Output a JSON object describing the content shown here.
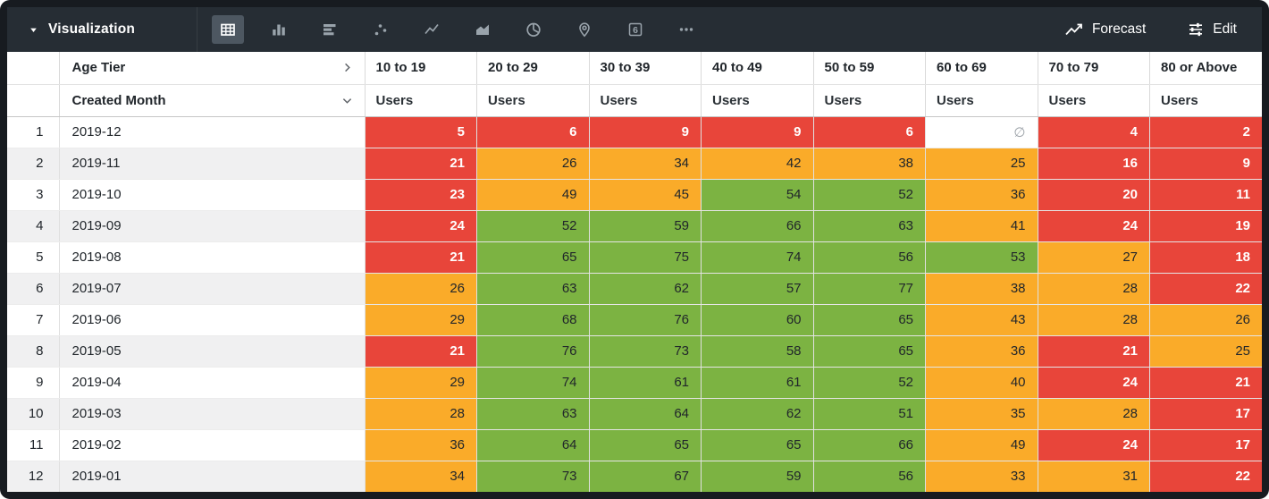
{
  "toolbar": {
    "title": "Visualization",
    "viz_types": [
      {
        "name": "table-icon",
        "selected": true
      },
      {
        "name": "column-chart-icon",
        "selected": false
      },
      {
        "name": "bar-chart-icon",
        "selected": false
      },
      {
        "name": "scatter-plot-icon",
        "selected": false
      },
      {
        "name": "line-chart-icon",
        "selected": false
      },
      {
        "name": "area-chart-icon",
        "selected": false
      },
      {
        "name": "pie-chart-icon",
        "selected": false
      },
      {
        "name": "map-icon",
        "selected": false
      },
      {
        "name": "single-value-icon",
        "selected": false,
        "glyph": "6"
      },
      {
        "name": "more-viz-types-icon",
        "selected": false
      }
    ],
    "forecast_label": "Forecast",
    "edit_label": "Edit"
  },
  "table": {
    "pivot_field": "Age Tier",
    "dimension_field": "Created Month",
    "measure_label": "Users",
    "pivot_columns": [
      "10 to 19",
      "20 to 29",
      "30 to 39",
      "40 to 49",
      "50 to 59",
      "60 to 69",
      "70 to 79",
      "80 or Above"
    ],
    "rows": [
      {
        "n": 1,
        "month": "2019-12",
        "cells": [
          {
            "v": 5,
            "c": "red"
          },
          {
            "v": 6,
            "c": "red"
          },
          {
            "v": 9,
            "c": "red"
          },
          {
            "v": 9,
            "c": "red"
          },
          {
            "v": 6,
            "c": "red"
          },
          {
            "v": "∅",
            "c": "null"
          },
          {
            "v": 4,
            "c": "red"
          },
          {
            "v": 2,
            "c": "red"
          }
        ]
      },
      {
        "n": 2,
        "month": "2019-11",
        "cells": [
          {
            "v": 21,
            "c": "red"
          },
          {
            "v": 26,
            "c": "orange"
          },
          {
            "v": 34,
            "c": "orange"
          },
          {
            "v": 42,
            "c": "orange"
          },
          {
            "v": 38,
            "c": "orange"
          },
          {
            "v": 25,
            "c": "orange"
          },
          {
            "v": 16,
            "c": "red"
          },
          {
            "v": 9,
            "c": "red"
          }
        ]
      },
      {
        "n": 3,
        "month": "2019-10",
        "cells": [
          {
            "v": 23,
            "c": "red"
          },
          {
            "v": 49,
            "c": "orange"
          },
          {
            "v": 45,
            "c": "orange"
          },
          {
            "v": 54,
            "c": "green"
          },
          {
            "v": 52,
            "c": "green"
          },
          {
            "v": 36,
            "c": "orange"
          },
          {
            "v": 20,
            "c": "red"
          },
          {
            "v": 11,
            "c": "red"
          }
        ]
      },
      {
        "n": 4,
        "month": "2019-09",
        "cells": [
          {
            "v": 24,
            "c": "red"
          },
          {
            "v": 52,
            "c": "green"
          },
          {
            "v": 59,
            "c": "green"
          },
          {
            "v": 66,
            "c": "green"
          },
          {
            "v": 63,
            "c": "green"
          },
          {
            "v": 41,
            "c": "orange"
          },
          {
            "v": 24,
            "c": "red"
          },
          {
            "v": 19,
            "c": "red"
          }
        ]
      },
      {
        "n": 5,
        "month": "2019-08",
        "cells": [
          {
            "v": 21,
            "c": "red"
          },
          {
            "v": 65,
            "c": "green"
          },
          {
            "v": 75,
            "c": "green"
          },
          {
            "v": 74,
            "c": "green"
          },
          {
            "v": 56,
            "c": "green"
          },
          {
            "v": 53,
            "c": "green"
          },
          {
            "v": 27,
            "c": "orange"
          },
          {
            "v": 18,
            "c": "red"
          }
        ]
      },
      {
        "n": 6,
        "month": "2019-07",
        "cells": [
          {
            "v": 26,
            "c": "orange"
          },
          {
            "v": 63,
            "c": "green"
          },
          {
            "v": 62,
            "c": "green"
          },
          {
            "v": 57,
            "c": "green"
          },
          {
            "v": 77,
            "c": "green"
          },
          {
            "v": 38,
            "c": "orange"
          },
          {
            "v": 28,
            "c": "orange"
          },
          {
            "v": 22,
            "c": "red"
          }
        ]
      },
      {
        "n": 7,
        "month": "2019-06",
        "cells": [
          {
            "v": 29,
            "c": "orange"
          },
          {
            "v": 68,
            "c": "green"
          },
          {
            "v": 76,
            "c": "green"
          },
          {
            "v": 60,
            "c": "green"
          },
          {
            "v": 65,
            "c": "green"
          },
          {
            "v": 43,
            "c": "orange"
          },
          {
            "v": 28,
            "c": "orange"
          },
          {
            "v": 26,
            "c": "orange"
          }
        ]
      },
      {
        "n": 8,
        "month": "2019-05",
        "cells": [
          {
            "v": 21,
            "c": "red"
          },
          {
            "v": 76,
            "c": "green"
          },
          {
            "v": 73,
            "c": "green"
          },
          {
            "v": 58,
            "c": "green"
          },
          {
            "v": 65,
            "c": "green"
          },
          {
            "v": 36,
            "c": "orange"
          },
          {
            "v": 21,
            "c": "red"
          },
          {
            "v": 25,
            "c": "orange"
          }
        ]
      },
      {
        "n": 9,
        "month": "2019-04",
        "cells": [
          {
            "v": 29,
            "c": "orange"
          },
          {
            "v": 74,
            "c": "green"
          },
          {
            "v": 61,
            "c": "green"
          },
          {
            "v": 61,
            "c": "green"
          },
          {
            "v": 52,
            "c": "green"
          },
          {
            "v": 40,
            "c": "orange"
          },
          {
            "v": 24,
            "c": "red"
          },
          {
            "v": 21,
            "c": "red"
          }
        ]
      },
      {
        "n": 10,
        "month": "2019-03",
        "cells": [
          {
            "v": 28,
            "c": "orange"
          },
          {
            "v": 63,
            "c": "green"
          },
          {
            "v": 64,
            "c": "green"
          },
          {
            "v": 62,
            "c": "green"
          },
          {
            "v": 51,
            "c": "green"
          },
          {
            "v": 35,
            "c": "orange"
          },
          {
            "v": 28,
            "c": "orange"
          },
          {
            "v": 17,
            "c": "red"
          }
        ]
      },
      {
        "n": 11,
        "month": "2019-02",
        "cells": [
          {
            "v": 36,
            "c": "orange"
          },
          {
            "v": 64,
            "c": "green"
          },
          {
            "v": 65,
            "c": "green"
          },
          {
            "v": 65,
            "c": "green"
          },
          {
            "v": 66,
            "c": "green"
          },
          {
            "v": 49,
            "c": "orange"
          },
          {
            "v": 24,
            "c": "red"
          },
          {
            "v": 17,
            "c": "red"
          }
        ]
      },
      {
        "n": 12,
        "month": "2019-01",
        "cells": [
          {
            "v": 34,
            "c": "orange"
          },
          {
            "v": 73,
            "c": "green"
          },
          {
            "v": 67,
            "c": "green"
          },
          {
            "v": 59,
            "c": "green"
          },
          {
            "v": 56,
            "c": "green"
          },
          {
            "v": 33,
            "c": "orange"
          },
          {
            "v": 31,
            "c": "orange"
          },
          {
            "v": 22,
            "c": "red"
          }
        ]
      }
    ]
  },
  "colors": {
    "red": "#e8453a",
    "orange": "#faab29",
    "green": "#7cb342"
  }
}
